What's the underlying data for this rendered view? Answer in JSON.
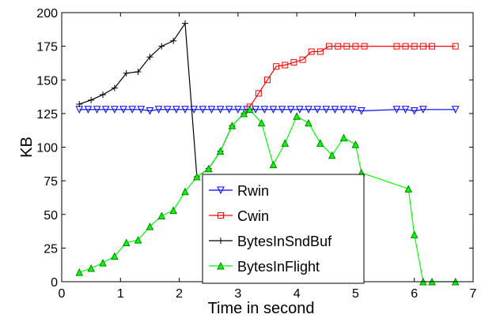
{
  "chart_data": {
    "type": "line",
    "title": "",
    "xlabel": "Time in second",
    "ylabel": "KB",
    "xlim": [
      0,
      7
    ],
    "ylim": [
      0,
      200
    ],
    "xticks": [
      0,
      1,
      2,
      3,
      4,
      5,
      6,
      7
    ],
    "yticks": [
      0,
      25,
      50,
      75,
      100,
      125,
      150,
      175,
      200
    ],
    "grid": false,
    "legend_position": "center",
    "series": [
      {
        "name": "Rwin",
        "color": "#0000ff",
        "marker": "triangle-down",
        "points": [
          [
            0.3,
            128
          ],
          [
            0.45,
            128
          ],
          [
            0.6,
            128
          ],
          [
            0.75,
            128
          ],
          [
            0.9,
            128
          ],
          [
            1.05,
            128
          ],
          [
            1.2,
            128
          ],
          [
            1.35,
            128
          ],
          [
            1.5,
            127
          ],
          [
            1.65,
            128
          ],
          [
            1.8,
            128
          ],
          [
            1.95,
            128
          ],
          [
            2.1,
            128
          ],
          [
            2.25,
            128
          ],
          [
            2.4,
            128
          ],
          [
            2.55,
            128
          ],
          [
            2.7,
            128
          ],
          [
            2.85,
            128
          ],
          [
            3.0,
            128
          ],
          [
            3.15,
            128
          ],
          [
            3.3,
            128
          ],
          [
            3.45,
            128
          ],
          [
            3.6,
            128
          ],
          [
            3.75,
            128
          ],
          [
            3.9,
            128
          ],
          [
            4.05,
            128
          ],
          [
            4.2,
            128
          ],
          [
            4.35,
            128
          ],
          [
            4.5,
            128
          ],
          [
            4.65,
            128
          ],
          [
            4.8,
            128
          ],
          [
            4.95,
            128
          ],
          [
            5.1,
            127
          ],
          [
            5.7,
            128
          ],
          [
            5.85,
            128
          ],
          [
            6.0,
            127
          ],
          [
            6.15,
            128
          ],
          [
            6.7,
            128
          ]
        ]
      },
      {
        "name": "Cwin",
        "color": "#ff0000",
        "marker": "square",
        "points": [
          [
            3.2,
            130
          ],
          [
            3.35,
            140
          ],
          [
            3.5,
            150
          ],
          [
            3.65,
            160
          ],
          [
            3.8,
            161
          ],
          [
            3.95,
            163
          ],
          [
            4.1,
            165
          ],
          [
            4.25,
            171
          ],
          [
            4.4,
            171
          ],
          [
            4.55,
            175
          ],
          [
            4.7,
            175
          ],
          [
            4.85,
            175
          ],
          [
            5.0,
            175
          ],
          [
            5.15,
            175
          ],
          [
            5.7,
            175
          ],
          [
            5.85,
            175
          ],
          [
            6.0,
            175
          ],
          [
            6.15,
            175
          ],
          [
            6.3,
            175
          ],
          [
            6.7,
            175
          ]
        ]
      },
      {
        "name": "BytesInSndBuf",
        "color": "#000000",
        "marker": "plus",
        "points": [
          [
            0.3,
            132
          ],
          [
            0.5,
            135
          ],
          [
            0.7,
            139
          ],
          [
            0.9,
            144
          ],
          [
            1.1,
            155
          ],
          [
            1.3,
            156
          ],
          [
            1.5,
            167
          ],
          [
            1.7,
            175
          ],
          [
            1.9,
            179
          ],
          [
            2.1,
            192
          ],
          [
            2.3,
            78
          ],
          [
            2.5,
            84
          ],
          [
            2.7,
            97
          ],
          [
            2.9,
            116
          ],
          [
            3.1,
            125
          ],
          [
            3.2,
            128
          ]
        ]
      },
      {
        "name": "BytesInFlight",
        "color": "#00ff00",
        "edge_color": "#008000",
        "marker": "triangle-up",
        "points": [
          [
            0.3,
            7
          ],
          [
            0.5,
            10
          ],
          [
            0.7,
            14
          ],
          [
            0.9,
            19
          ],
          [
            1.1,
            29
          ],
          [
            1.3,
            31
          ],
          [
            1.5,
            41
          ],
          [
            1.7,
            49
          ],
          [
            1.9,
            53
          ],
          [
            2.1,
            67
          ],
          [
            2.3,
            78
          ],
          [
            2.5,
            84
          ],
          [
            2.7,
            97
          ],
          [
            2.9,
            116
          ],
          [
            3.1,
            125
          ],
          [
            3.2,
            128
          ],
          [
            3.4,
            118
          ],
          [
            3.6,
            87
          ],
          [
            3.8,
            103
          ],
          [
            4.0,
            123
          ],
          [
            4.2,
            118
          ],
          [
            4.4,
            103
          ],
          [
            4.6,
            94
          ],
          [
            4.8,
            107
          ],
          [
            5.0,
            102
          ],
          [
            5.1,
            81
          ],
          [
            5.9,
            69
          ],
          [
            6.0,
            35
          ],
          [
            6.15,
            0
          ],
          [
            6.3,
            0
          ],
          [
            6.7,
            0
          ]
        ]
      }
    ]
  }
}
